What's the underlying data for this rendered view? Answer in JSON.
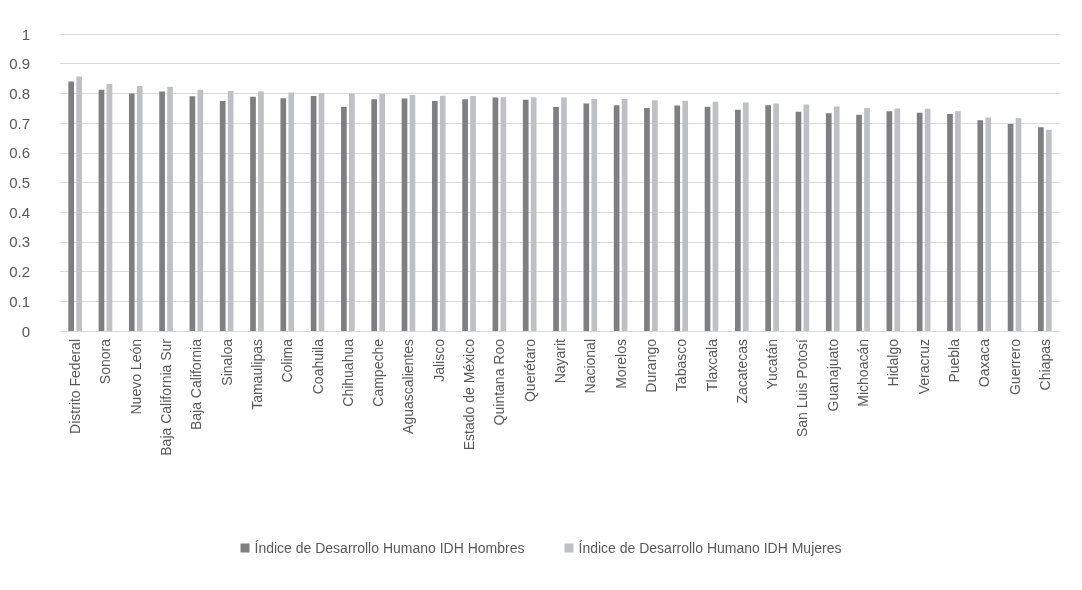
{
  "chart_data": {
    "type": "bar",
    "categories": [
      "Distrito Federal",
      "Sonora",
      "Nuevo León",
      "Baja California Sur",
      "Baja California",
      "Sinaloa",
      "Tamaulipas",
      "Colima",
      "Coahuila",
      "Chihuahua",
      "Campeche",
      "Aguascalientes",
      "Jalisco",
      "Estado de México",
      "Quintana Roo",
      "Querétaro",
      "Nayarit",
      "Nacional",
      "Morelos",
      "Durango",
      "Tabasco",
      "Tlaxcala",
      "Zacatecas",
      "Yucatán",
      "San Luis Potosí",
      "Guanajuato",
      "Michoacán",
      "Hidalgo",
      "Veracruz",
      "Puebla",
      "Oaxaca",
      "Guerrero",
      "Chiapas"
    ],
    "series": [
      {
        "name": "Índice de Desarrollo Humano IDH Hombres",
        "color": "#7f7f81",
        "values": [
          0.84,
          0.812,
          0.8,
          0.806,
          0.79,
          0.774,
          0.789,
          0.784,
          0.791,
          0.755,
          0.78,
          0.783,
          0.774,
          0.78,
          0.786,
          0.779,
          0.754,
          0.766,
          0.76,
          0.751,
          0.759,
          0.755,
          0.745,
          0.76,
          0.738,
          0.733,
          0.728,
          0.74,
          0.735,
          0.731,
          0.71,
          0.697,
          0.686
        ]
      },
      {
        "name": "Índice de Desarrollo Humano IDH Mujeres",
        "color": "#bfc0c3",
        "values": [
          0.857,
          0.832,
          0.825,
          0.822,
          0.812,
          0.808,
          0.806,
          0.803,
          0.801,
          0.8,
          0.798,
          0.795,
          0.792,
          0.791,
          0.787,
          0.787,
          0.786,
          0.781,
          0.781,
          0.777,
          0.775,
          0.772,
          0.769,
          0.766,
          0.763,
          0.756,
          0.751,
          0.749,
          0.748,
          0.74,
          0.719,
          0.716,
          0.678
        ]
      }
    ],
    "ylim": [
      0,
      1
    ],
    "yticks": [
      0,
      0.1,
      0.2,
      0.3,
      0.4,
      0.5,
      0.6,
      0.7,
      0.8,
      0.9,
      1
    ],
    "grid": "y",
    "legend": "bottom"
  }
}
